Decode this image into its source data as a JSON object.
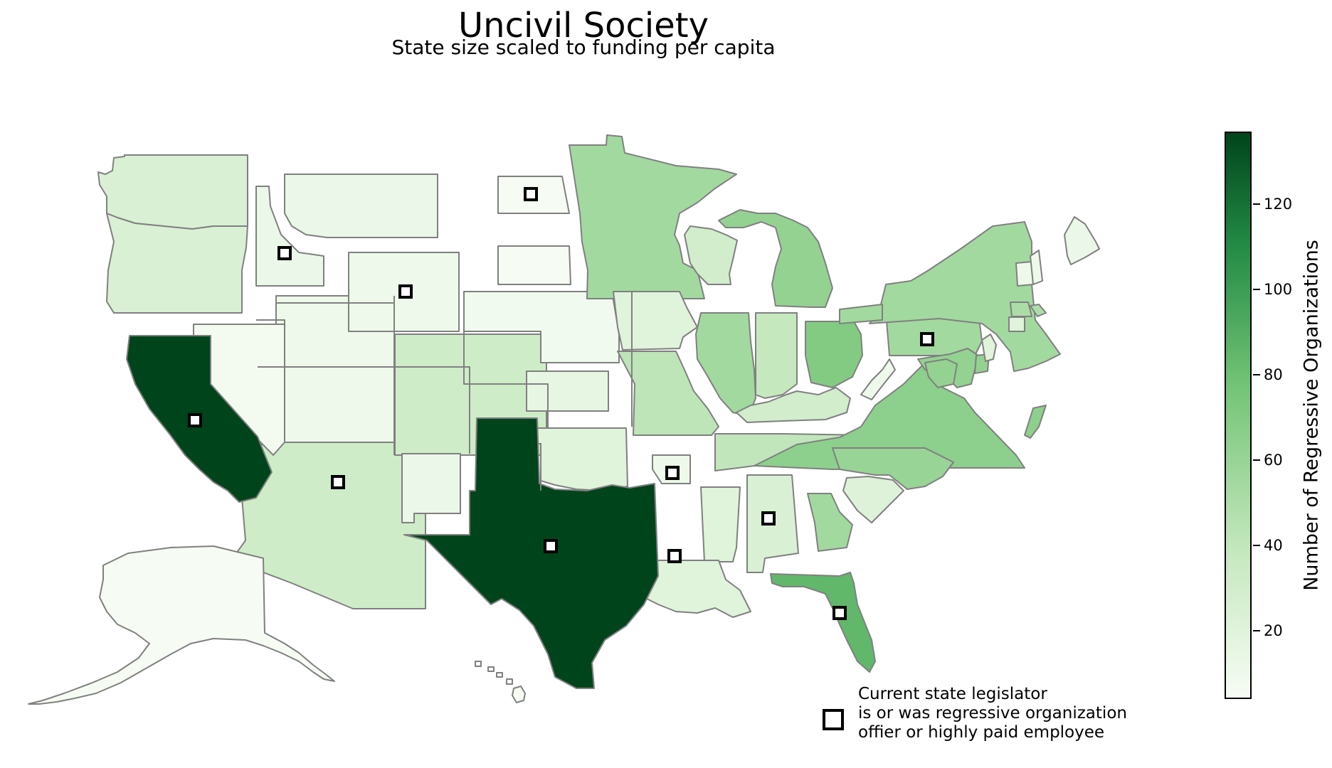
{
  "title": "Uncivil Society",
  "subtitle": "State size scaled to funding per capita",
  "colorbar": {
    "label": "Number of Regressive Organizations",
    "min": 4,
    "max": 137,
    "ticks": [
      "20",
      "40",
      "60",
      "80",
      "100",
      "120"
    ],
    "tick_values": [
      20,
      40,
      60,
      80,
      100,
      120
    ],
    "colors": [
      "#f7fcf5",
      "#c7e9c0",
      "#74c476",
      "#238b45",
      "#00441b"
    ]
  },
  "legend": {
    "marker": "hollow-square",
    "lines": [
      "Current state legislator",
      "is or was regressive organization",
      "offier or highly paid employee"
    ]
  },
  "states": [
    {
      "name": "Washington",
      "orgs": 25,
      "legislator": false
    },
    {
      "name": "Oregon",
      "orgs": 25,
      "legislator": false
    },
    {
      "name": "California",
      "orgs": 137,
      "legislator": true
    },
    {
      "name": "Idaho",
      "orgs": 12,
      "legislator": true
    },
    {
      "name": "Montana",
      "orgs": 12,
      "legislator": false
    },
    {
      "name": "Wyoming",
      "orgs": 10,
      "legislator": true
    },
    {
      "name": "Nevada",
      "orgs": 7,
      "legislator": false
    },
    {
      "name": "Utah",
      "orgs": 10,
      "legislator": false
    },
    {
      "name": "Colorado",
      "orgs": 32,
      "legislator": false
    },
    {
      "name": "Arizona",
      "orgs": 32,
      "legislator": true
    },
    {
      "name": "New Mexico",
      "orgs": 12,
      "legislator": false
    },
    {
      "name": "Alaska",
      "orgs": 5,
      "legislator": false
    },
    {
      "name": "Hawaii",
      "orgs": 5,
      "legislator": false
    },
    {
      "name": "North Dakota",
      "orgs": 5,
      "legislator": true
    },
    {
      "name": "South Dakota",
      "orgs": 5,
      "legislator": false
    },
    {
      "name": "Nebraska",
      "orgs": 8,
      "legislator": false
    },
    {
      "name": "Kansas",
      "orgs": 15,
      "legislator": false
    },
    {
      "name": "Oklahoma",
      "orgs": 20,
      "legislator": false
    },
    {
      "name": "Texas",
      "orgs": 137,
      "legislator": true
    },
    {
      "name": "Minnesota",
      "orgs": 55,
      "legislator": false
    },
    {
      "name": "Iowa",
      "orgs": 20,
      "legislator": false
    },
    {
      "name": "Missouri",
      "orgs": 42,
      "legislator": false
    },
    {
      "name": "Arkansas",
      "orgs": 10,
      "legislator": true
    },
    {
      "name": "Louisiana",
      "orgs": 20,
      "legislator": true
    },
    {
      "name": "Wisconsin",
      "orgs": 30,
      "legislator": false
    },
    {
      "name": "Illinois",
      "orgs": 55,
      "legislator": false
    },
    {
      "name": "Michigan",
      "orgs": 62,
      "legislator": false
    },
    {
      "name": "Indiana",
      "orgs": 38,
      "legislator": false
    },
    {
      "name": "Ohio",
      "orgs": 70,
      "legislator": false
    },
    {
      "name": "Kentucky",
      "orgs": 30,
      "legislator": false
    },
    {
      "name": "Tennessee",
      "orgs": 40,
      "legislator": false
    },
    {
      "name": "Mississippi",
      "orgs": 20,
      "legislator": false
    },
    {
      "name": "Alabama",
      "orgs": 25,
      "legislator": true
    },
    {
      "name": "Georgia",
      "orgs": 55,
      "legislator": false
    },
    {
      "name": "Florida",
      "orgs": 85,
      "legislator": true
    },
    {
      "name": "South Carolina",
      "orgs": 22,
      "legislator": false
    },
    {
      "name": "North Carolina",
      "orgs": 60,
      "legislator": false
    },
    {
      "name": "Virginia",
      "orgs": 65,
      "legislator": false
    },
    {
      "name": "West Virginia",
      "orgs": 10,
      "legislator": false
    },
    {
      "name": "Pennsylvania",
      "orgs": 55,
      "legislator": true
    },
    {
      "name": "New York",
      "orgs": 55,
      "legislator": false
    },
    {
      "name": "Maryland",
      "orgs": 62,
      "legislator": false
    },
    {
      "name": "Delaware",
      "orgs": 62,
      "legislator": false
    },
    {
      "name": "New Jersey",
      "orgs": 20,
      "legislator": false
    },
    {
      "name": "Connecticut",
      "orgs": 20,
      "legislator": false
    },
    {
      "name": "Massachusetts",
      "orgs": 50,
      "legislator": false
    },
    {
      "name": "Vermont",
      "orgs": 10,
      "legislator": false
    },
    {
      "name": "New Hampshire",
      "orgs": 10,
      "legislator": false
    },
    {
      "name": "Maine",
      "orgs": 12,
      "legislator": false
    }
  ]
}
